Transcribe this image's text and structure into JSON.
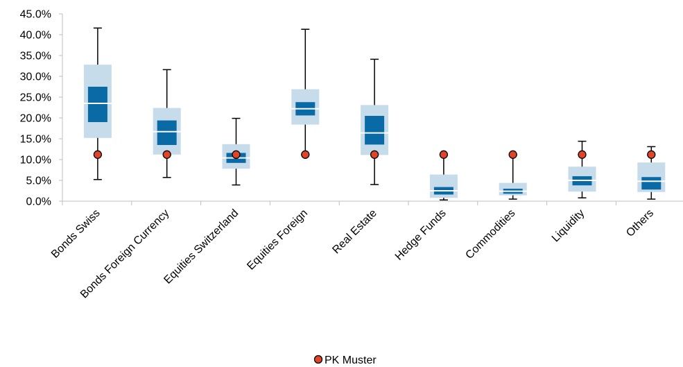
{
  "chart_data": {
    "type": "box",
    "ylim": [
      0,
      45
    ],
    "y_tick_labels": [
      "0.0%",
      "5.0%",
      "10.0%",
      "15.0%",
      "20.0%",
      "25.0%",
      "30.0%",
      "35.0%",
      "40.0%",
      "45.0%"
    ],
    "y_ticks": [
      0,
      5,
      10,
      15,
      20,
      25,
      30,
      35,
      40,
      45
    ],
    "grid": false,
    "legend_position": "bottom-center",
    "categories": [
      "Bonds Swiss",
      "Bonds Foreign Currency",
      "Equities Switzerland",
      "Equities Foreign",
      "Real Estate",
      "Hedge Funds",
      "Commodities",
      "Liquidity",
      "Others"
    ],
    "boxes": [
      {
        "min": 5.2,
        "p10": 15.2,
        "q1": 19.0,
        "median": 23.5,
        "q3": 27.5,
        "p90": 32.8,
        "max": 41.6
      },
      {
        "min": 5.7,
        "p10": 11.2,
        "q1": 13.5,
        "median": 16.7,
        "q3": 19.4,
        "p90": 22.4,
        "max": 31.6
      },
      {
        "min": 3.9,
        "p10": 7.8,
        "q1": 9.2,
        "median": 10.4,
        "q3": 11.6,
        "p90": 13.7,
        "max": 19.9
      },
      {
        "min": 11.2,
        "p10": 18.4,
        "q1": 20.6,
        "median": 22.2,
        "q3": 23.8,
        "p90": 26.9,
        "max": 41.3
      },
      {
        "min": 4.0,
        "p10": 11.1,
        "q1": 13.6,
        "median": 16.4,
        "q3": 20.5,
        "p90": 23.1,
        "max": 34.1
      },
      {
        "min": 0.3,
        "p10": 0.8,
        "q1": 1.6,
        "median": 2.5,
        "q3": 3.4,
        "p90": 6.4,
        "max": 11.2
      },
      {
        "min": 0.5,
        "p10": 1.4,
        "q1": 1.8,
        "median": 2.4,
        "q3": 3.0,
        "p90": 4.4,
        "max": 11.2
      },
      {
        "min": 0.8,
        "p10": 2.3,
        "q1": 3.8,
        "median": 5.0,
        "q3": 6.0,
        "p90": 8.3,
        "max": 14.4
      },
      {
        "min": 0.5,
        "p10": 2.2,
        "q1": 2.8,
        "median": 4.8,
        "q3": 5.8,
        "p90": 9.3,
        "max": 13.1
      }
    ],
    "series": [
      {
        "name": "PK Muster",
        "values": [
          11.2,
          11.2,
          11.2,
          11.2,
          11.2,
          11.2,
          11.2,
          11.2,
          11.2
        ]
      }
    ],
    "colors": {
      "outer_box": "#c7dcea",
      "inner_box": "#0a6aa6",
      "median_line": "#ffffff",
      "whisker": "#000000",
      "marker_fill": "#e0452a",
      "marker_stroke": "#000000",
      "axis": "#bfbfbf"
    }
  },
  "legend": {
    "label": "PK Muster"
  }
}
